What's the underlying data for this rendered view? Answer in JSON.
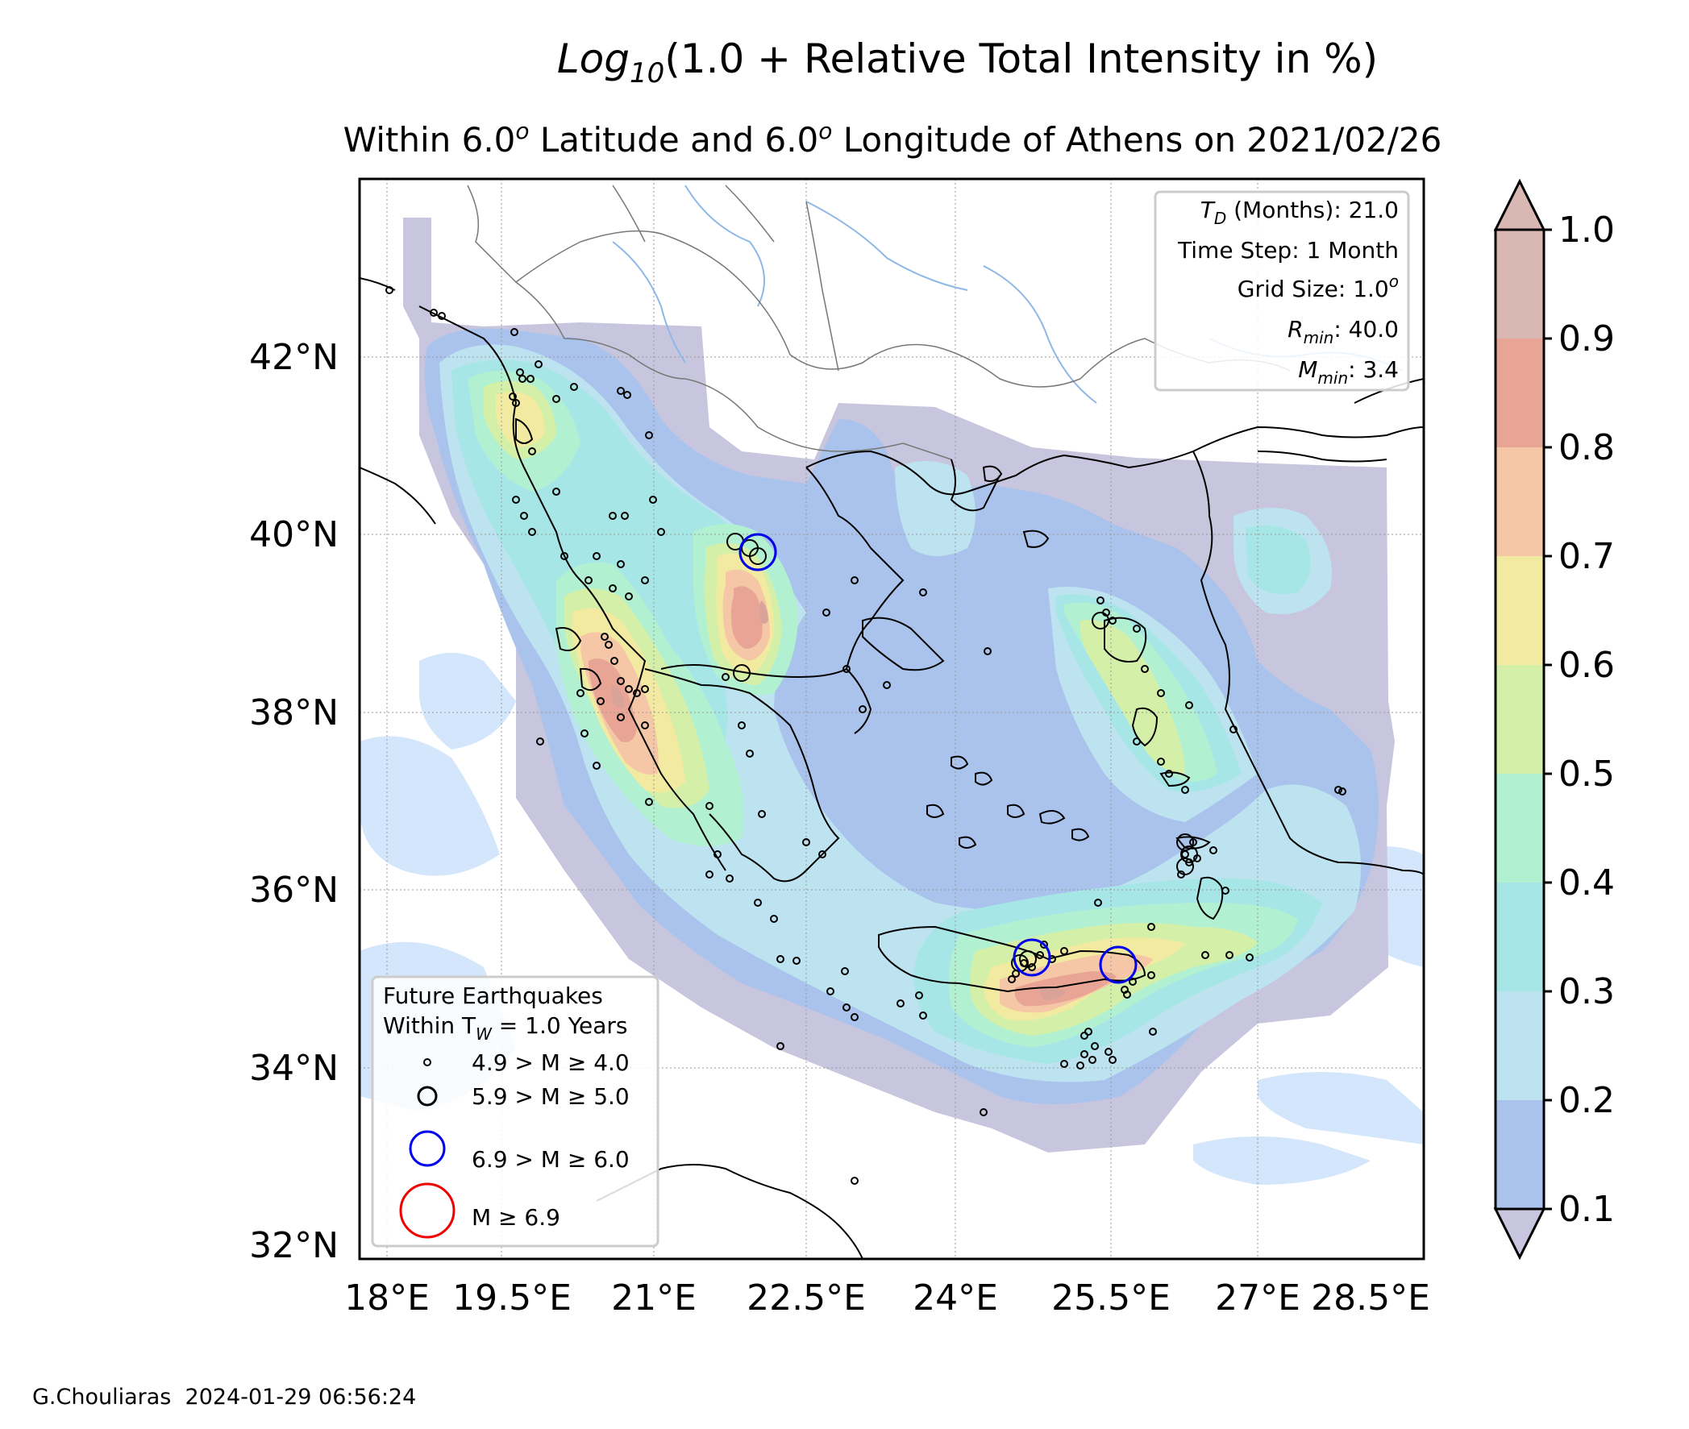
{
  "title": {
    "prefix": "Log",
    "subscript": "10",
    "rest": "(1.0 + Relative Total Intensity in %)"
  },
  "subtitle": {
    "part1": "Within 6.0",
    "sup1": "o",
    "part2": " Latitude and 6.0",
    "sup2": "o",
    "part3": " Longitude of Athens on 2021/02/26"
  },
  "axes": {
    "x_ticks": [
      "18°E",
      "19.5°E",
      "21°E",
      "22.5°E",
      "24°E",
      "25.5°E",
      "27°E",
      "28.5°E"
    ],
    "y_ticks": [
      "42°N",
      "40°N",
      "38°N",
      "36°N",
      "34°N",
      "32°N"
    ]
  },
  "params": {
    "td_label": "T",
    "td_sub": "D",
    "td_rest": " (Months): 21.0",
    "time_step": "Time Step: 1 Month",
    "grid_label": "Grid Size: 1.0",
    "grid_sup": "o",
    "rmin_label": "R",
    "rmin_sub": "min",
    "rmin_rest": ": 40.0",
    "mmin_label": "M",
    "mmin_sub": "min",
    "mmin_rest": ": 3.4"
  },
  "legend": {
    "title1": "Future Earthquakes",
    "title2_pre": "Within T",
    "title2_sub": "W",
    "title2_post": " = 1.0 Years",
    "entries": [
      {
        "label": "4.9 > M ≥ 4.0",
        "color": "#000000"
      },
      {
        "label": "5.9 > M ≥ 5.0",
        "color": "#000000"
      },
      {
        "label": "6.9 > M ≥ 6.0",
        "color": "#0000ff"
      },
      {
        "label": "M ≥ 6.9",
        "color": "#ff0000"
      }
    ]
  },
  "colorbar": {
    "ticks": [
      "1.0",
      "0.9",
      "0.8",
      "0.7",
      "0.6",
      "0.5",
      "0.4",
      "0.3",
      "0.2",
      "0.1"
    ],
    "colors": [
      "#d9b8b4",
      "#e8a596",
      "#f5c7a6",
      "#f2eaa0",
      "#d4f0a8",
      "#b2f0d2",
      "#a6e6e6",
      "#bde2f0",
      "#a9c3ec",
      "#c8c6de"
    ]
  },
  "footer": "G.Chouliaras  2024-01-29 06:56:24"
}
